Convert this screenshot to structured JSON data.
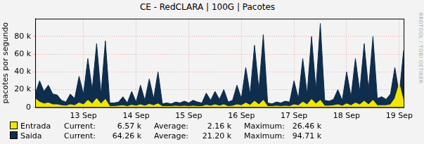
{
  "chart_data": {
    "type": "area",
    "title": "CE - RedCLARA | 100G | Pacotes",
    "y_label": "pacotes por segundo",
    "watermark": "RRDTOOL / TOBI OETIKER",
    "grid": true,
    "stat_names": [
      "Current:",
      "Average:",
      "Maximum:"
    ],
    "xlim": [
      0,
      168
    ],
    "xticks": [
      {
        "value": 22,
        "label": "13 Sep"
      },
      {
        "value": 46,
        "label": "14 Sep"
      },
      {
        "value": 70,
        "label": "15 Sep"
      },
      {
        "value": 94,
        "label": "16 Sep"
      },
      {
        "value": 118,
        "label": "17 Sep"
      },
      {
        "value": 142,
        "label": "18 Sep"
      },
      {
        "value": 166,
        "label": "19 Sep"
      }
    ],
    "ylim": [
      0,
      100000
    ],
    "yticks": [
      0,
      {
        "value": 20000,
        "label": "20 k"
      },
      {
        "value": 40000,
        "label": "40 k"
      },
      {
        "value": 60000,
        "label": "60 k"
      },
      {
        "value": 80000,
        "label": "80 k"
      }
    ],
    "x": [
      0,
      2,
      4,
      6,
      8,
      10,
      12,
      14,
      16,
      18,
      20,
      22,
      24,
      26,
      28,
      30,
      32,
      34,
      36,
      38,
      40,
      42,
      44,
      46,
      48,
      50,
      52,
      54,
      56,
      58,
      60,
      62,
      64,
      66,
      68,
      70,
      72,
      74,
      76,
      78,
      80,
      82,
      84,
      86,
      88,
      90,
      92,
      94,
      96,
      98,
      100,
      102,
      104,
      106,
      108,
      110,
      112,
      114,
      116,
      118,
      120,
      122,
      124,
      126,
      128,
      130,
      132,
      134,
      136,
      138,
      140,
      142,
      144,
      146,
      148,
      150,
      152,
      154,
      156,
      158,
      160,
      162,
      164,
      166,
      168
    ],
    "series": [
      {
        "name": "Entrada",
        "color": "#f2e600",
        "stats": [
          {
            "value": 6570,
            "label": "6.57 k"
          },
          {
            "value": 2160,
            "label": "2.16 k"
          },
          {
            "value": 26460,
            "label": "26.46 k"
          }
        ],
        "values": [
          10000,
          6000,
          4000,
          5000,
          3000,
          3000,
          2000,
          1500,
          3000,
          2000,
          5000,
          3000,
          8000,
          4000,
          10000,
          4000,
          9000,
          1000,
          1000,
          1500,
          2000,
          1000,
          2500,
          1500,
          3000,
          1500,
          3500,
          2000,
          4000,
          1000,
          1000,
          1000,
          1500,
          1000,
          1500,
          1000,
          1500,
          1000,
          1000,
          2500,
          1500,
          3000,
          1500,
          3000,
          1000,
          1500,
          3000,
          2000,
          5000,
          2500,
          7000,
          3000,
          8000,
          1000,
          1000,
          1500,
          1000,
          1500,
          1000,
          3000,
          2000,
          6000,
          3000,
          9000,
          4000,
          8000,
          1500,
          1500,
          2000,
          3000,
          1500,
          4000,
          2000,
          5000,
          3000,
          7000,
          3000,
          8000,
          2000,
          2000,
          2000,
          3000,
          10000,
          26460,
          6570
        ]
      },
      {
        "name": "Saida",
        "color": "#0f2d4c",
        "stats": [
          {
            "value": 64260,
            "label": "64.26 k"
          },
          {
            "value": 21200,
            "label": "21.20 k"
          },
          {
            "value": 94710,
            "label": "94.71 k"
          }
        ],
        "values": [
          15000,
          30000,
          18000,
          25000,
          15000,
          14000,
          8000,
          6000,
          15000,
          10000,
          35000,
          15000,
          55000,
          20000,
          72000,
          15000,
          75000,
          5000,
          5000,
          6000,
          12000,
          5000,
          18000,
          6000,
          25000,
          8000,
          32000,
          10000,
          40000,
          4000,
          5000,
          4000,
          6000,
          5000,
          7000,
          5000,
          8000,
          6000,
          5000,
          16000,
          8000,
          18000,
          9000,
          20000,
          6000,
          8000,
          25000,
          10000,
          45000,
          15000,
          70000,
          20000,
          82000,
          5000,
          4000,
          6000,
          5000,
          7000,
          6000,
          30000,
          10000,
          55000,
          15000,
          80000,
          20000,
          94710,
          8000,
          7000,
          9000,
          20000,
          8000,
          40000,
          12000,
          55000,
          18000,
          72000,
          20000,
          80000,
          10000,
          12000,
          9000,
          15000,
          45000,
          15000,
          64260
        ]
      }
    ]
  }
}
